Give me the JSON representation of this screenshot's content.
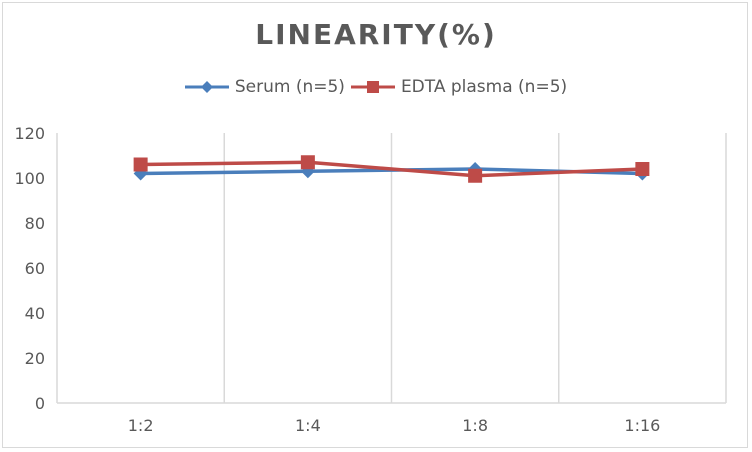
{
  "chart_data": {
    "type": "line",
    "title": "LINEARITY(%)",
    "xlabel": "",
    "ylabel": "",
    "categories": [
      "1:2",
      "1:4",
      "1:8",
      "1:16"
    ],
    "series": [
      {
        "name": "Serum (n=5)",
        "color": "#4a7ebb",
        "marker": "diamond",
        "values": [
          102,
          103,
          104,
          102
        ]
      },
      {
        "name": "EDTA plasma (n=5)",
        "color": "#be4b48",
        "marker": "square",
        "values": [
          106,
          107,
          101,
          104
        ]
      }
    ],
    "ylim": [
      0,
      120
    ],
    "yticks": [
      0,
      20,
      40,
      60,
      80,
      100,
      120
    ],
    "grid": "vertical category separators",
    "legend_position": "top"
  }
}
